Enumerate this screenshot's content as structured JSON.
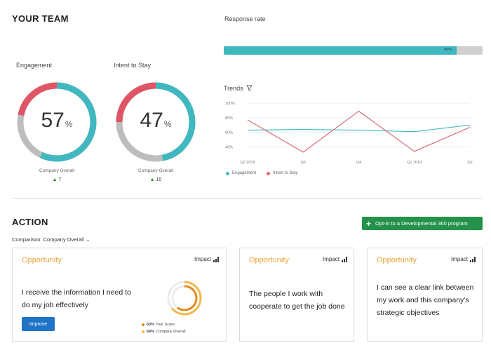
{
  "team": {
    "title": "YOUR TEAM"
  },
  "engagement": {
    "label": "Engagement",
    "value": "57",
    "unit": "%",
    "company_label": "Company Overall",
    "delta": "7",
    "score_fraction": 0.57
  },
  "intent": {
    "label": "Intent to Stay",
    "value": "47",
    "unit": "%",
    "company_label": "Company Overall",
    "delta": "10",
    "score_fraction": 0.47
  },
  "response_rate": {
    "title": "Response rate",
    "value_text": "90%",
    "fraction": 0.9
  },
  "trends": {
    "title": "Trends",
    "chart_data": {
      "type": "line",
      "x": [
        "Q2 2018",
        "Q3",
        "Q4",
        "Q1 2019",
        "Q2"
      ],
      "yticks": [
        "100%",
        "80%",
        "60%",
        "40%"
      ],
      "ylim": [
        30,
        100
      ],
      "series": [
        {
          "name": "Engagement",
          "color": "#41b8bf",
          "values": [
            63,
            64,
            63,
            61,
            70
          ]
        },
        {
          "name": "Intent to Stay",
          "color": "#d96b78",
          "values": [
            77,
            33,
            89,
            34,
            67
          ]
        }
      ],
      "legend_position": "bottom-left",
      "grid": true
    }
  },
  "action": {
    "title": "ACTION",
    "cta_label": "Opt-in to a Developmental 360 program",
    "comparison_label": "Comparison: Company Overall"
  },
  "cards": [
    {
      "opportunity": "Opportunity",
      "impact": "Impact",
      "statement": "I receive the information I need to do my job effectively",
      "button": "Improve",
      "your_score_pct": "60%",
      "your_score_label": "Your Score",
      "company_pct": "64%",
      "company_label": "Company Overall",
      "your_score_fraction": 0.6,
      "company_fraction": 0.64
    },
    {
      "opportunity": "Opportunity",
      "impact": "Impact",
      "statement": "The people I work with cooperate to get the job done"
    },
    {
      "opportunity": "Opportunity",
      "impact": "Impact",
      "statement": "I can see a clear link between my work and this company's strategic objectives"
    }
  ],
  "colors": {
    "teal": "#41b8bf",
    "red": "#e05566",
    "grey": "#bdbdbd",
    "green": "#24924a",
    "orange": "#e8a43a",
    "blue": "#1f74c6"
  }
}
